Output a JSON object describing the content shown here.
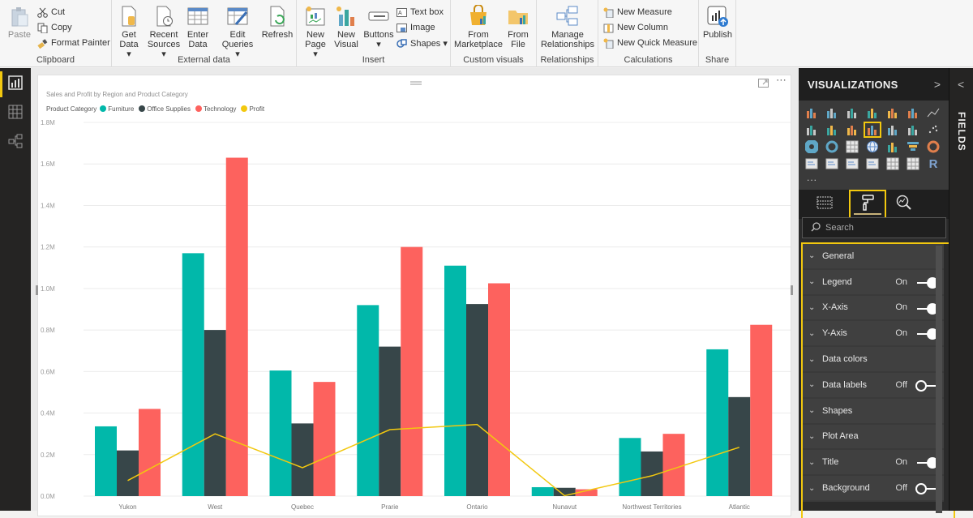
{
  "ribbon": {
    "groups": [
      {
        "label": "Clipboard",
        "paste": "Paste",
        "cut": "Cut",
        "copy": "Copy",
        "format_painter": "Format Painter"
      },
      {
        "label": "External data",
        "get_data_1": "Get",
        "get_data_2": "Data ▾",
        "recent_1": "Recent",
        "recent_2": "Sources ▾",
        "enter_1": "Enter",
        "enter_2": "Data",
        "edit_1": "Edit",
        "edit_2": "Queries ▾",
        "refresh": "Refresh"
      },
      {
        "label": "Insert",
        "new_page_1": "New",
        "new_page_2": "Page ▾",
        "new_visual_1": "New",
        "new_visual_2": "Visual",
        "buttons_1": "Buttons",
        "buttons_2": "▾",
        "text_box": "Text box",
        "image": "Image",
        "shapes": "Shapes ▾"
      },
      {
        "label": "Custom visuals",
        "marketplace_1": "From",
        "marketplace_2": "Marketplace",
        "file_1": "From",
        "file_2": "File"
      },
      {
        "label": "Relationships",
        "manage_1": "Manage",
        "manage_2": "Relationships"
      },
      {
        "label": "Calculations",
        "new_measure": "New Measure",
        "new_column": "New Column",
        "new_quick_measure": "New Quick Measure"
      },
      {
        "label": "Share",
        "publish": "Publish"
      }
    ]
  },
  "leftnav": {
    "items": [
      {
        "name": "report-view",
        "active": true
      },
      {
        "name": "data-view",
        "active": false
      },
      {
        "name": "relationships-view",
        "active": false
      }
    ]
  },
  "visual": {
    "title": "Sales and Profit by Region and Product Category",
    "legend_title": "Product Category",
    "focus_mode_icon": "focus-mode-icon",
    "more_options": "⋯"
  },
  "colors": {
    "furniture": "#01B8AA",
    "office_supplies": "#374649",
    "technology": "#FD625E",
    "profit": "#F2C80F",
    "accent_highlight": "#F2C80F"
  },
  "chart_data": {
    "type": "bar",
    "subtype": "clustered column + line",
    "title": "Sales and Profit by Region and Product Category",
    "legend_title": "Product Category",
    "legend_position": "top-left",
    "categories": [
      "Yukon",
      "West",
      "Quebec",
      "Prarie",
      "Ontario",
      "Nunavut",
      "Northwest Territories",
      "Atlantic"
    ],
    "series": [
      {
        "name": "Furniture",
        "type": "bar",
        "color": "#01B8AA",
        "values": [
          0.336,
          1.17,
          0.605,
          0.92,
          1.11,
          0.043,
          0.28,
          0.707
        ]
      },
      {
        "name": "Office Supplies",
        "type": "bar",
        "color": "#374649",
        "values": [
          0.22,
          0.8,
          0.35,
          0.72,
          0.925,
          0.04,
          0.215,
          0.477
        ]
      },
      {
        "name": "Technology",
        "type": "bar",
        "color": "#FD625E",
        "values": [
          0.42,
          1.63,
          0.55,
          1.2,
          1.025,
          0.033,
          0.3,
          0.825
        ]
      },
      {
        "name": "Profit",
        "type": "line",
        "color": "#F2C80F",
        "values": [
          0.075,
          0.3,
          0.137,
          0.32,
          0.345,
          0.002,
          0.098,
          0.235
        ]
      }
    ],
    "unit": "M",
    "yticks": [
      "0.0M",
      "0.2M",
      "0.4M",
      "0.6M",
      "0.8M",
      "1.0M",
      "1.2M",
      "1.4M",
      "1.6M",
      "1.8M"
    ],
    "ylim": [
      0,
      1.8
    ],
    "xlabel": "",
    "ylabel": "",
    "grid": true
  },
  "vizpane": {
    "title": "VISUALIZATIONS",
    "expand_chevron": ">",
    "more": "...",
    "search_placeholder": "Search",
    "format_sections": [
      {
        "label": "General",
        "state": null
      },
      {
        "label": "Legend",
        "state": "On"
      },
      {
        "label": "X-Axis",
        "state": "On"
      },
      {
        "label": "Y-Axis",
        "state": "On"
      },
      {
        "label": "Data colors",
        "state": null
      },
      {
        "label": "Data labels",
        "state": "Off"
      },
      {
        "label": "Shapes",
        "state": null
      },
      {
        "label": "Plot Area",
        "state": null
      },
      {
        "label": "Title",
        "state": "On"
      },
      {
        "label": "Background",
        "state": "Off"
      }
    ]
  },
  "fieldspane": {
    "title": "FIELDS",
    "collapse_chevron": "<"
  }
}
